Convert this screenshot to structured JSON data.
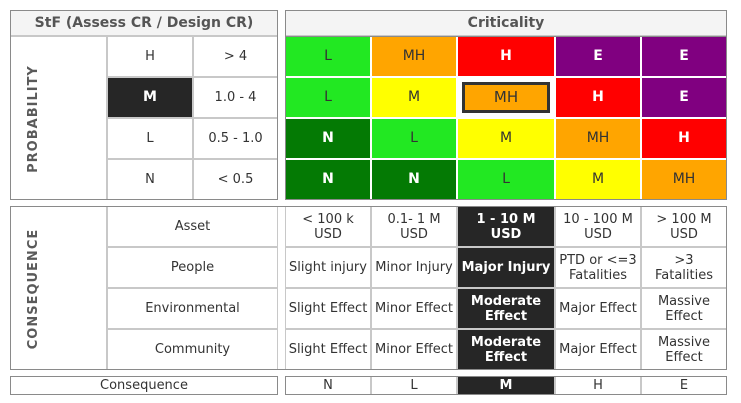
{
  "stf_header": "StF (Assess CR / Design CR)",
  "criticality_header": "Criticality",
  "probability_label": "PROBABILITY",
  "consequence_side_label": "CONSEQUENCE",
  "probability_levels": [
    {
      "level": "H",
      "range": "> 4"
    },
    {
      "level": "M",
      "range": "1.0 - 4"
    },
    {
      "level": "L",
      "range": "0.5 - 1.0"
    },
    {
      "level": "N",
      "range": "< 0.5"
    }
  ],
  "selected_probability": "M",
  "matrix": [
    [
      "L",
      "MH",
      "H",
      "E",
      "E"
    ],
    [
      "L",
      "M",
      "MH",
      "H",
      "E"
    ],
    [
      "N",
      "L",
      "M",
      "MH",
      "H"
    ],
    [
      "N",
      "N",
      "L",
      "M",
      "MH"
    ]
  ],
  "rating_colors": {
    "N": "#047a04",
    "L": "#22e822",
    "M": "#ffff00",
    "MH": "#ffa500",
    "H": "#ff0000",
    "E": "#800080"
  },
  "rating_text_colors": {
    "N": "#ffffff",
    "L": "#333333",
    "M": "#333333",
    "MH": "#333333",
    "H": "#ffffff",
    "E": "#ffffff"
  },
  "selected_matrix_cell": {
    "row": 1,
    "col": 2
  },
  "consequence_categories": [
    {
      "name": "Asset",
      "values": [
        "< 100 k USD",
        "0.1- 1 M USD",
        "1 - 10 M USD",
        "10 - 100 M USD",
        "> 100 M USD"
      ]
    },
    {
      "name": "People",
      "values": [
        "Slight injury",
        "Minor Injury",
        "Major Injury",
        "PTD or <=3 Fatalities",
        ">3 Fatalities"
      ]
    },
    {
      "name": "Environmental",
      "values": [
        "Slight Effect",
        "Minor Effect",
        "Moderate Effect",
        "Major Effect",
        "Massive Effect"
      ]
    },
    {
      "name": "Community",
      "values": [
        "Slight Effect",
        "Minor Effect",
        "Moderate Effect",
        "Major Effect",
        "Massive Effect"
      ]
    }
  ],
  "consequence_row_label": "Consequence",
  "consequence_levels": [
    "N",
    "L",
    "M",
    "H",
    "E"
  ],
  "selected_consequence_col": 2
}
